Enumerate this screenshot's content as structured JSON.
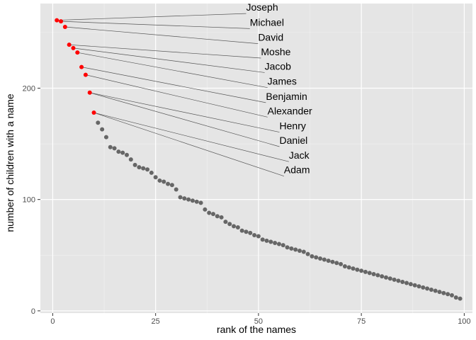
{
  "chart_data": {
    "type": "scatter",
    "xlabel": "rank of the names",
    "ylabel": "number of children with a name",
    "xlim": [
      -3,
      102
    ],
    "ylim": [
      -2,
      276
    ],
    "x_ticks": [
      0,
      25,
      50,
      75,
      100
    ],
    "y_ticks": [
      0,
      100,
      200
    ],
    "grid": true,
    "background": "#e5e5e5",
    "colors": {
      "point": "#666666",
      "highlight": "#ff0000",
      "connector": "#555555"
    },
    "x": [
      1,
      2,
      3,
      4,
      5,
      6,
      7,
      8,
      9,
      10,
      11,
      12,
      13,
      14,
      15,
      16,
      17,
      18,
      19,
      20,
      21,
      22,
      23,
      24,
      25,
      26,
      27,
      28,
      29,
      30,
      31,
      32,
      33,
      34,
      35,
      36,
      37,
      38,
      39,
      40,
      41,
      42,
      43,
      44,
      45,
      46,
      47,
      48,
      49,
      50,
      51,
      52,
      53,
      54,
      55,
      56,
      57,
      58,
      59,
      60,
      61,
      62,
      63,
      64,
      65,
      66,
      67,
      68,
      69,
      70,
      71,
      72,
      73,
      74,
      75,
      76,
      77,
      78,
      79,
      80,
      81,
      82,
      83,
      84,
      85,
      86,
      87,
      88,
      89,
      90,
      91,
      92,
      93,
      94,
      95,
      96,
      97,
      98,
      99
    ],
    "y": [
      261,
      260,
      255,
      239,
      236,
      232,
      219,
      212,
      196,
      178,
      169,
      163,
      156,
      147,
      146,
      143,
      142,
      140,
      136,
      131,
      129,
      128,
      127,
      124,
      120,
      117,
      116,
      114,
      113,
      109,
      102,
      101,
      100,
      99,
      98,
      97,
      91,
      88,
      87,
      85,
      84,
      80,
      78,
      76,
      75,
      72,
      71,
      70,
      68,
      67,
      64,
      63,
      62,
      61,
      60,
      59,
      57,
      56,
      55,
      54,
      53,
      51,
      49,
      48,
      47,
      46,
      45,
      44,
      43,
      42,
      40,
      39,
      38,
      37,
      36,
      35,
      34,
      33,
      32,
      31,
      30,
      29,
      28,
      27,
      26,
      25,
      24,
      23,
      22,
      21,
      20,
      19,
      18,
      17,
      16,
      15,
      14,
      12,
      11
    ],
    "labels": [
      {
        "rank": 1,
        "name": "Joseph",
        "lx": 47,
        "ly": 267
      },
      {
        "rank": 2,
        "name": "Michael",
        "lx": 47.9,
        "ly": 253.5
      },
      {
        "rank": 3,
        "name": "David",
        "lx": 49.9,
        "ly": 240
      },
      {
        "rank": 4,
        "name": "Moshe",
        "lx": 50.6,
        "ly": 227
      },
      {
        "rank": 5,
        "name": "Jacob",
        "lx": 51.5,
        "ly": 214
      },
      {
        "rank": 6,
        "name": "James",
        "lx": 52.2,
        "ly": 200.5
      },
      {
        "rank": 7,
        "name": "Benjamin",
        "lx": 51.8,
        "ly": 187
      },
      {
        "rank": 8,
        "name": "Alexander",
        "lx": 52.2,
        "ly": 174
      },
      {
        "rank": 9,
        "name": "Henry",
        "lx": 55.1,
        "ly": 160.5
      },
      {
        "rank": 9,
        "name": "Daniel",
        "lx": 55.1,
        "ly": 147.5
      },
      {
        "rank": 10,
        "name": "Jack",
        "lx": 57.4,
        "ly": 134
      },
      {
        "rank": 10,
        "name": "Adam",
        "lx": 56.2,
        "ly": 121
      }
    ]
  }
}
